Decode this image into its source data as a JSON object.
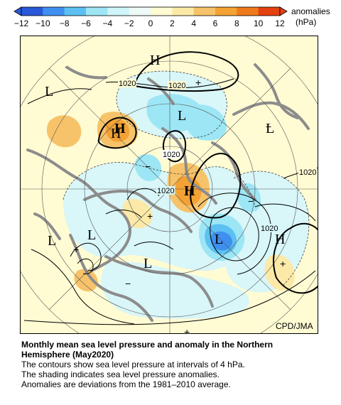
{
  "colorbar": {
    "ticks": [
      "-12",
      "-10",
      "-8",
      "-6",
      "-4",
      "-2",
      "0",
      "2",
      "4",
      "6",
      "8",
      "10",
      "12"
    ],
    "unit_line1": "anomalies",
    "unit_line2": "(hPa)",
    "colors": [
      "#2a58d8",
      "#3f8ff0",
      "#5cc0f2",
      "#9de6f5",
      "#cff5f8",
      "#eefaf6",
      "#fffbd3",
      "#fce9a8",
      "#f7c36a",
      "#f3a233",
      "#ee7a1b",
      "#e44010"
    ]
  },
  "map": {
    "pressure_labels": [
      {
        "id": "H1",
        "text": "H"
      },
      {
        "id": "L1",
        "text": "L"
      },
      {
        "id": "L2",
        "text": "L"
      },
      {
        "id": "H2",
        "text": "H"
      },
      {
        "id": "H3",
        "text": "H"
      },
      {
        "id": "L3",
        "text": "L"
      },
      {
        "id": "H4",
        "text": "H"
      },
      {
        "id": "L4",
        "text": "L"
      },
      {
        "id": "L5",
        "text": "L"
      },
      {
        "id": "H5",
        "text": "H"
      },
      {
        "id": "L6",
        "text": "L"
      },
      {
        "id": "L7",
        "text": "L"
      }
    ],
    "contour_labels": [
      {
        "id": "c1",
        "text": "1020"
      },
      {
        "id": "c2",
        "text": "1020"
      },
      {
        "id": "c3",
        "text": "1020"
      },
      {
        "id": "c4",
        "text": "1020"
      },
      {
        "id": "c5",
        "text": "1020"
      },
      {
        "id": "c6",
        "text": "1020"
      }
    ],
    "anomaly_signs": [
      {
        "id": "p1",
        "text": "+"
      },
      {
        "id": "p2",
        "text": "+"
      },
      {
        "id": "p3",
        "text": "+"
      },
      {
        "id": "p4",
        "text": "+"
      },
      {
        "id": "p5",
        "text": "+"
      },
      {
        "id": "m1",
        "text": "−"
      },
      {
        "id": "m2",
        "text": "−"
      },
      {
        "id": "m3",
        "text": "−"
      },
      {
        "id": "m4",
        "text": "−"
      }
    ]
  },
  "credit": "CPD/JMA",
  "caption": {
    "title_line1": "Monthly mean sea level pressure and anomaly in the Northern",
    "title_line2": "Hemisphere (May2020)",
    "line1": "The contours show sea level pressure at intervals of 4 hPa.",
    "line2": "The shading indicates sea level pressure anomalies.",
    "line3": "Anomalies are deviations from the 1981–2010 average."
  }
}
